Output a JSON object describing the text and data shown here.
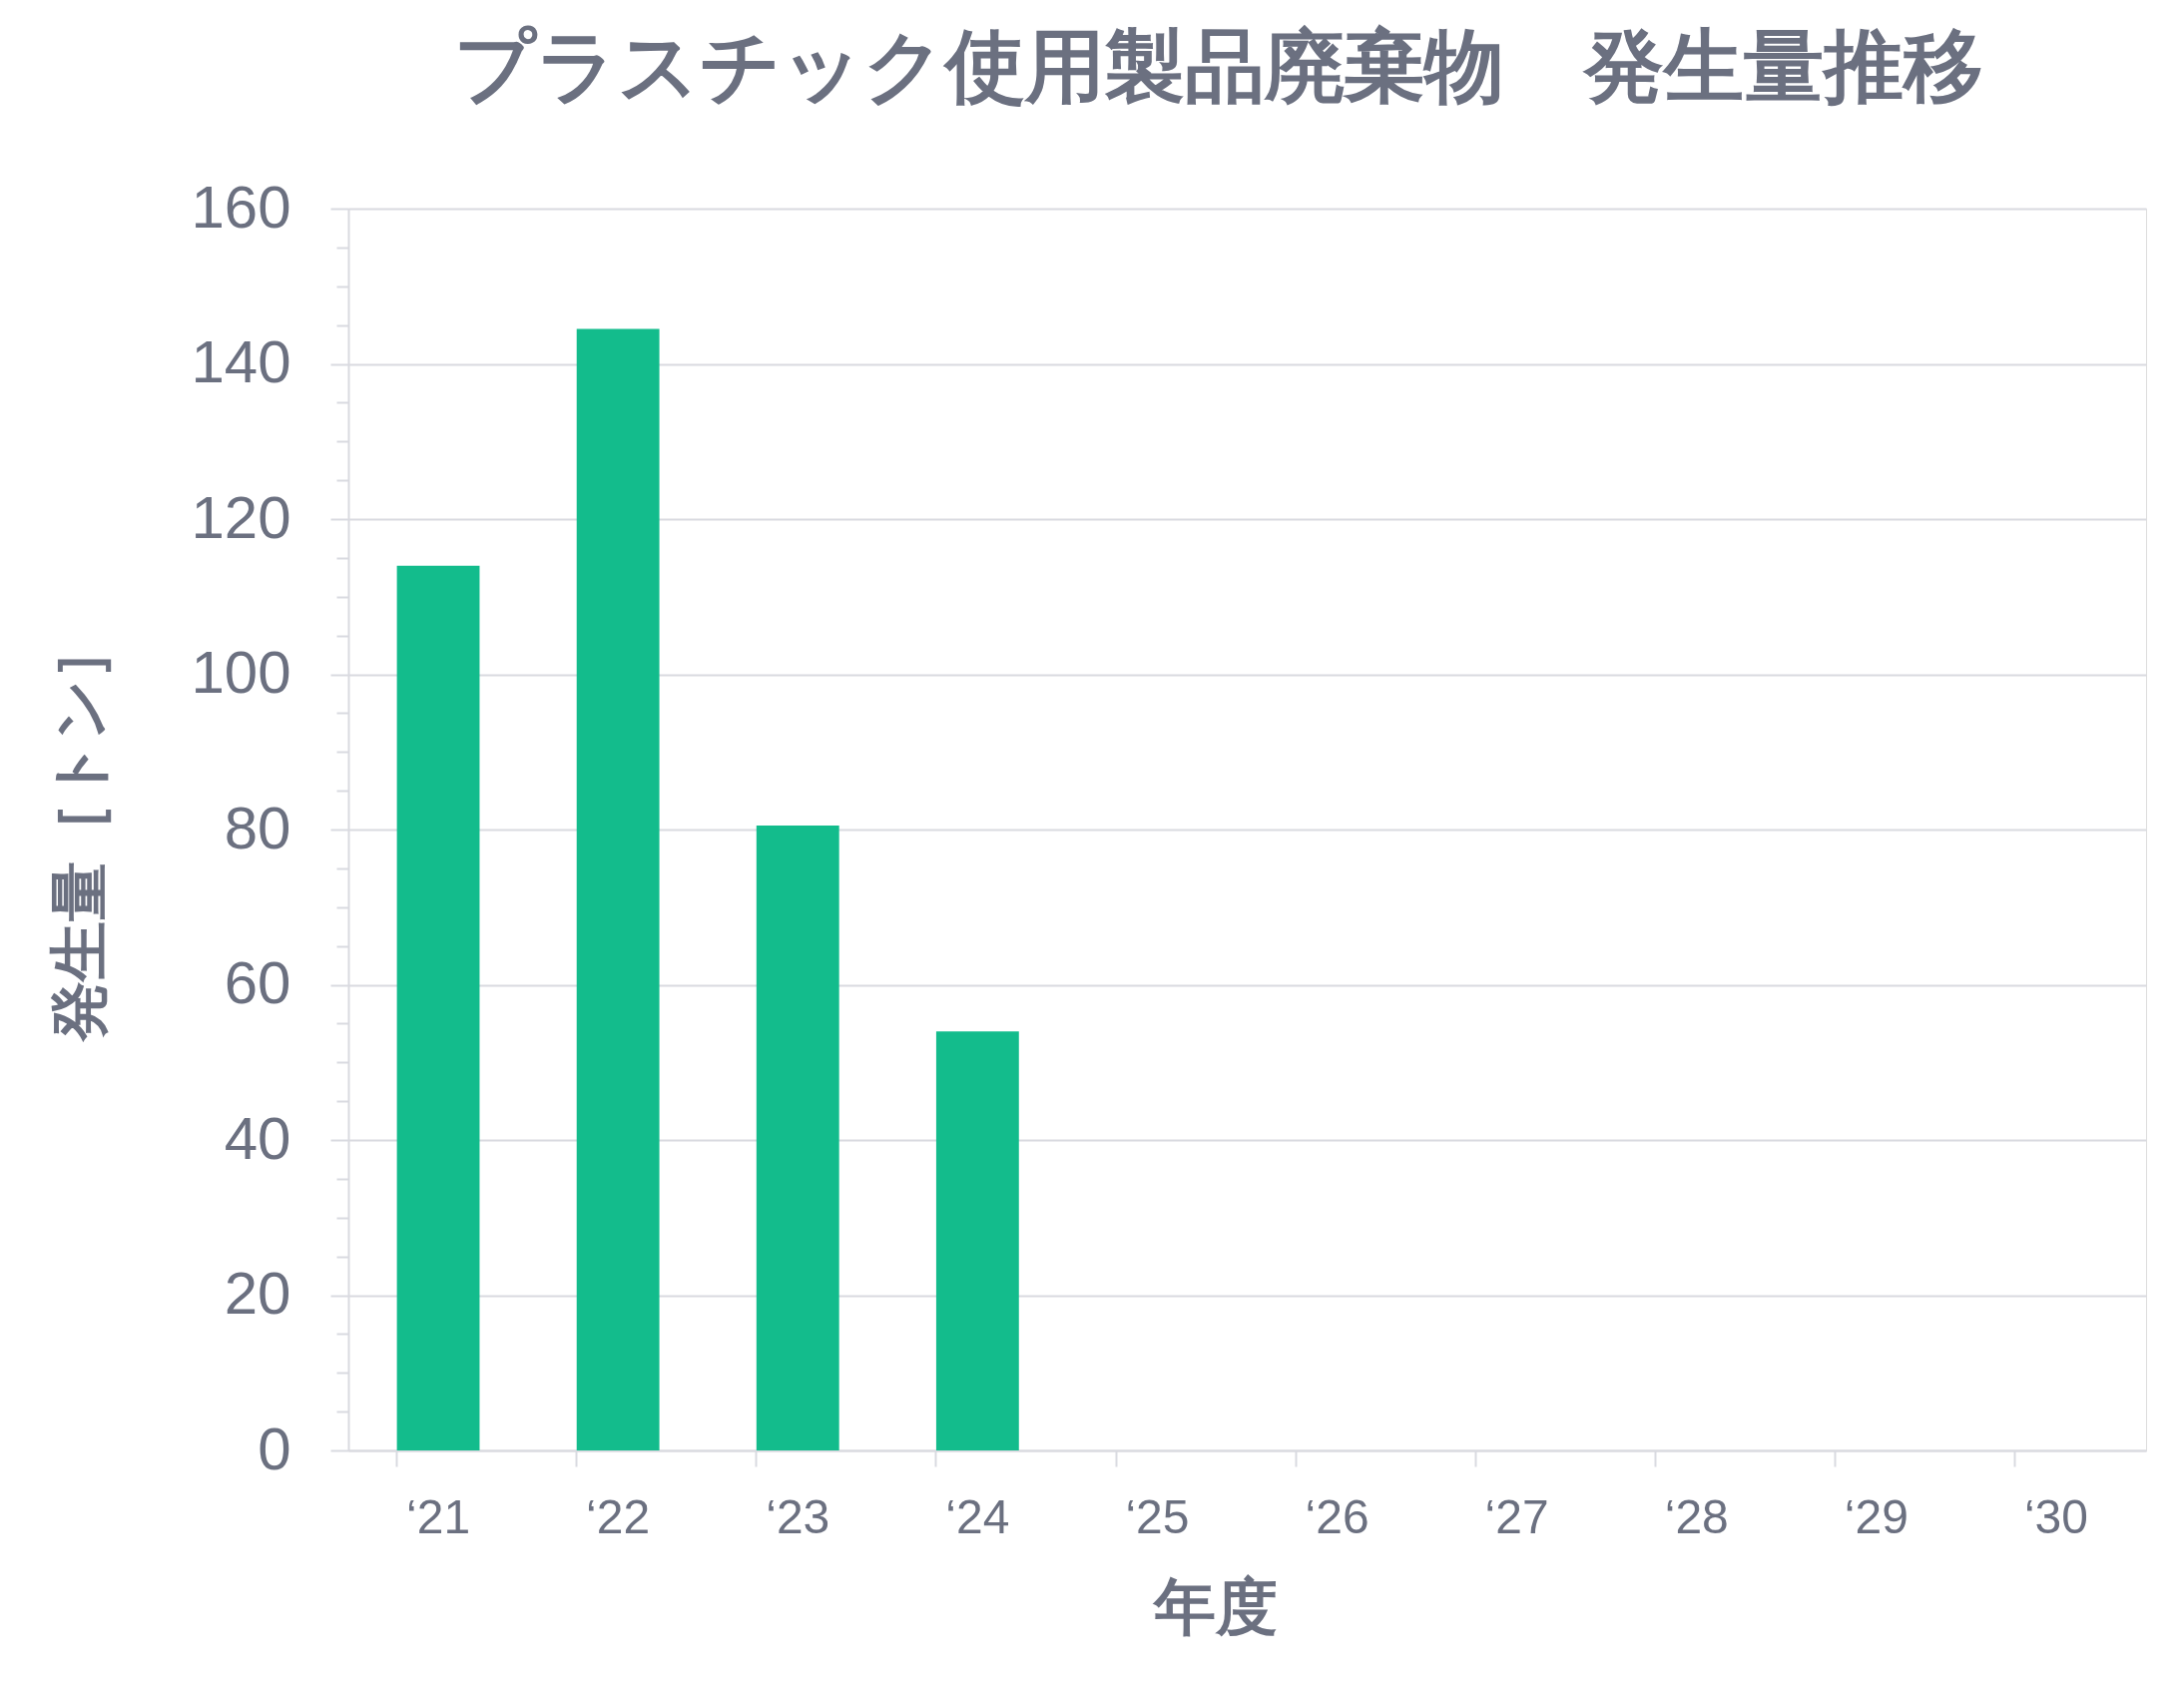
{
  "chart_data": {
    "type": "bar",
    "title": "プラスチック使用製品廃棄物　発生量推移",
    "xlabel": "年度",
    "ylabel": "発生量［トン］",
    "categories": [
      "‘21",
      "‘22",
      "‘23",
      "‘24",
      "‘25",
      "‘26",
      "‘27",
      "‘28",
      "‘29",
      "‘30"
    ],
    "values": [
      114,
      144.5,
      80.5,
      54,
      null,
      null,
      null,
      null,
      null,
      null
    ],
    "color": "#13bc8c",
    "ylim": [
      0,
      160
    ],
    "yticks": [
      0,
      {
        "value": 5,
        "label": null
      },
      {
        "value": 10,
        "label": null
      },
      {
        "value": 15,
        "label": null
      },
      20,
      {
        "value": 25,
        "label": null
      },
      {
        "value": 30,
        "label": null
      },
      {
        "value": 35,
        "label": null
      },
      40,
      {
        "value": 45,
        "label": null
      },
      {
        "value": 50,
        "label": null
      },
      {
        "value": 55,
        "label": null
      },
      60,
      {
        "value": 65,
        "label": null
      },
      {
        "value": 70,
        "label": null
      },
      {
        "value": 75,
        "label": null
      },
      80,
      {
        "value": 85,
        "label": null
      },
      {
        "value": 90,
        "label": null
      },
      {
        "value": 95,
        "label": null
      },
      100,
      {
        "value": 105,
        "label": null
      },
      {
        "value": 110,
        "label": null
      },
      {
        "value": 115,
        "label": null
      },
      120,
      {
        "value": 125,
        "label": null
      },
      {
        "value": 130,
        "label": null
      },
      {
        "value": 135,
        "label": null
      },
      140,
      {
        "value": 145,
        "label": null
      },
      {
        "value": 150,
        "label": null
      },
      {
        "value": 155,
        "label": null
      },
      160
    ],
    "grid": "y"
  }
}
